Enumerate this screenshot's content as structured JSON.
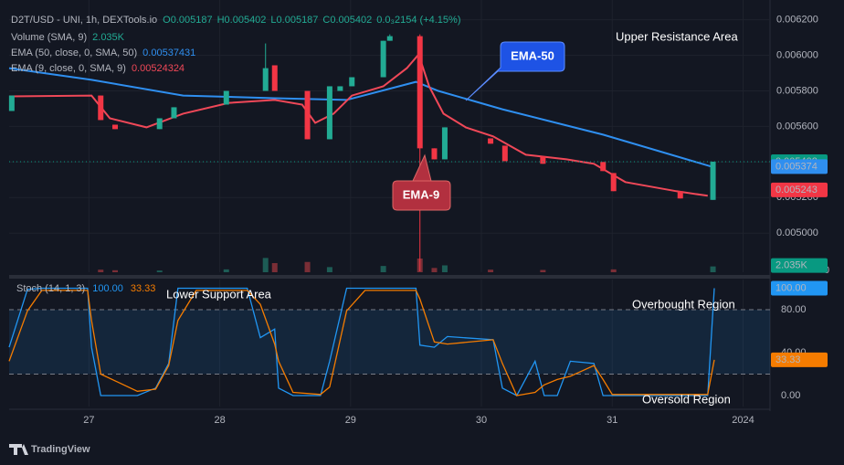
{
  "chart_data": [
    {
      "type": "candlestick",
      "title": "D2T/USD - UNI, 1h, DEXTools.io",
      "ohlc_legend": [
        "O0.005187",
        "H0.005402",
        "L0.005187",
        "C0.005402",
        "0.0₃2154 (+4.15%)"
      ],
      "xlim": [
        26.39,
        32.206
      ],
      "xticks": [
        27,
        28,
        29,
        30,
        31,
        {
          "value": 32,
          "label": "2024"
        }
      ],
      "ylim": [
        0.00478,
        0.00626
      ],
      "yticks": [
        {
          "value": 0.0062,
          "label": "0.006200"
        },
        {
          "value": 0.006,
          "label": "0.006000"
        },
        {
          "value": 0.0058,
          "label": "0.005800"
        },
        {
          "value": 0.0056,
          "label": "0.005600"
        },
        {
          "value": 0.0054,
          "label": "0.005400"
        },
        {
          "value": 0.0052,
          "label": "0.005200"
        },
        {
          "value": 0.005,
          "label": "0.005000"
        }
      ],
      "grid": true,
      "candles": {
        "up_color": "#22ab94",
        "down_color": "#f23645",
        "x": [
          26.41,
          27.09,
          27.2,
          27.54,
          27.65,
          28.05,
          28.35,
          28.42,
          28.67,
          28.84,
          28.92,
          29.01,
          29.25,
          29.3,
          29.53,
          29.64,
          29.72,
          30.07,
          30.18,
          30.47,
          30.93,
          31.01,
          31.52,
          31.77
        ],
        "open": [
          0.005687,
          0.005774,
          0.00561,
          0.005585,
          0.005646,
          0.005723,
          0.0058,
          0.005944,
          0.0058,
          0.005528,
          0.0058,
          0.005826,
          0.005877,
          0.006082,
          0.006108,
          0.005477,
          0.005415,
          0.005533,
          0.005492,
          0.005431,
          0.0054,
          0.005338,
          0.005236,
          0.005187
        ],
        "high": [
          0.005774,
          0.005774,
          0.00561,
          0.005646,
          0.005708,
          0.0058,
          0.006067,
          0.005944,
          0.0058,
          0.005826,
          0.005826,
          0.005877,
          0.006082,
          0.006118,
          0.006118,
          0.005477,
          0.005595,
          0.005533,
          0.005492,
          0.005431,
          0.0054,
          0.005338,
          0.005236,
          0.005402
        ],
        "low": [
          0.005687,
          0.005636,
          0.005585,
          0.005585,
          0.005646,
          0.005723,
          0.0058,
          0.0058,
          0.005528,
          0.005528,
          0.0058,
          0.005826,
          0.005877,
          0.006082,
          0.004785,
          0.005415,
          0.005415,
          0.005503,
          0.005405,
          0.00539,
          0.005349,
          0.005236,
          0.005195,
          0.005187
        ],
        "close": [
          0.005774,
          0.005636,
          0.005585,
          0.005646,
          0.005708,
          0.0058,
          0.005928,
          0.0058,
          0.005528,
          0.005826,
          0.005826,
          0.005877,
          0.006082,
          0.006108,
          0.005477,
          0.005415,
          0.005595,
          0.005503,
          0.005405,
          0.00539,
          0.005349,
          0.005236,
          0.005195,
          0.005402
        ]
      },
      "volume": {
        "name": "Volume (SMA, 9)",
        "legend_value": "2.035K",
        "ylim": [
          0,
          16000
        ],
        "yticks": [
          0
        ],
        "x": [
          27.09,
          27.2,
          27.54,
          28.05,
          28.35,
          28.42,
          28.67,
          28.84,
          29.25,
          29.53,
          29.64,
          29.72,
          30.07,
          30.47,
          31.01,
          31.77
        ],
        "values": [
          900,
          700,
          600,
          1000,
          5000,
          3200,
          3600,
          1800,
          2200,
          4800,
          1500,
          2400,
          900,
          800,
          1000,
          2035
        ],
        "colors": [
          "#7a2e36",
          "#7a2e36",
          "#1d5c55",
          "#1d5c55",
          "#1d5c55",
          "#7a2e36",
          "#7a2e36",
          "#1d5c55",
          "#1d5c55",
          "#7a2e36",
          "#7a2e36",
          "#1d5c55",
          "#7a2e36",
          "#7a2e36",
          "#7a2e36",
          "#1d5c55"
        ]
      },
      "series": [
        {
          "name": "EMA (50, close, 0, SMA, 50)",
          "legend_value": 0.00537431,
          "color": "#2f8ff0",
          "x": [
            26.39,
            27.02,
            27.72,
            28.42,
            28.97,
            29.5,
            29.67,
            30.16,
            30.93,
            31.76
          ],
          "values": [
            0.005928,
            0.005862,
            0.005774,
            0.005759,
            0.005749,
            0.005851,
            0.0058,
            0.005697,
            0.005554,
            0.005374
          ]
        },
        {
          "name": "EMA (9, close, 0, SMA, 9)",
          "legend_value": 0.00524324,
          "color": "#f04858",
          "x": [
            26.39,
            27.02,
            27.16,
            27.44,
            27.72,
            28.07,
            28.42,
            28.63,
            28.73,
            28.87,
            29.01,
            29.25,
            29.43,
            29.52,
            29.6,
            29.71,
            29.88,
            30.09,
            30.34,
            30.65,
            30.86,
            31.1,
            31.49,
            31.73
          ],
          "values": [
            0.005769,
            0.005774,
            0.005646,
            0.005595,
            0.005672,
            0.005733,
            0.005749,
            0.005723,
            0.00562,
            0.005672,
            0.005774,
            0.005826,
            0.005928,
            0.006005,
            0.005826,
            0.005672,
            0.005595,
            0.005544,
            0.005441,
            0.005415,
            0.00539,
            0.005287,
            0.005236,
            0.00521
          ]
        }
      ],
      "price_tags": [
        {
          "value": 0.005402,
          "color": "#089981"
        },
        {
          "value": 0.005374,
          "color": "#2f8ff0"
        },
        {
          "value": 0.005243,
          "color": "#f23645"
        }
      ],
      "volume_tag": {
        "value": 2035,
        "label": "2.035K",
        "color": "#089981"
      },
      "annotations": {
        "upper": "Upper Resistance Area",
        "ema50": "EMA-50",
        "ema9": "EMA-9"
      }
    },
    {
      "type": "line",
      "title": "Stoch (14, 1, 3)",
      "ylim": [
        -10.2,
        104.7
      ],
      "yticks": [
        {
          "value": 0,
          "label": "0.00"
        },
        {
          "value": 40,
          "label": "40.00"
        },
        {
          "value": 80,
          "label": "80.00"
        }
      ],
      "bands": [
        20,
        80
      ],
      "x": [
        26.39,
        26.53,
        26.64,
        26.99,
        27.02,
        27.09,
        27.37,
        27.51,
        27.61,
        27.68,
        27.82,
        28.21,
        28.31,
        28.42,
        28.45,
        28.56,
        28.77,
        28.84,
        28.97,
        29.11,
        29.5,
        29.53,
        29.64,
        29.74,
        30.09,
        30.16,
        30.27,
        30.41,
        30.48,
        30.58,
        30.68,
        30.86,
        30.93,
        31.0,
        31.73,
        31.78
      ],
      "series": [
        {
          "name": "100.00",
          "color": "#2196f3",
          "values": [
            45,
            99,
            100,
            100,
            45,
            0,
            0,
            7,
            30,
            100,
            100,
            100,
            54,
            62,
            7,
            0,
            0,
            32,
            100,
            100,
            100,
            47,
            45,
            55,
            52,
            7,
            0,
            32,
            0,
            0,
            32,
            30,
            0,
            0,
            0,
            100
          ]
        },
        {
          "name": "33.33",
          "color": "#f57c00",
          "values": [
            32,
            79,
            98,
            98,
            70,
            20,
            4,
            6,
            28,
            70,
            98,
            98,
            85,
            48,
            32,
            3,
            1,
            8,
            79,
            98,
            98,
            90,
            50,
            48,
            52,
            30,
            0,
            3,
            10,
            15,
            18,
            28,
            15,
            1,
            1,
            33.33
          ]
        }
      ],
      "tags": [
        {
          "value": 100,
          "label": "100.00",
          "color": "#2196f3"
        },
        {
          "value": 33.33,
          "color": "#f57c00"
        }
      ],
      "annotations": {
        "lower": "Lower Support Area",
        "overbought": "Overbought Region",
        "oversold": "Oversold Region"
      }
    }
  ],
  "footer": "TradingView"
}
